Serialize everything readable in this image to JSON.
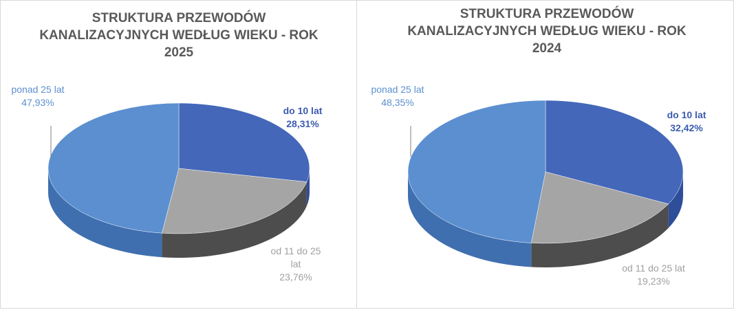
{
  "chart_data": [
    {
      "type": "pie",
      "title": "STRUKTURA PRZEWODÓW KANALIZACYJNYCH WEDŁUG WIEKU - ROK 2025",
      "categories": [
        "do 10 lat",
        "od 11 do 25 lat",
        "ponad 25 lat"
      ],
      "values": [
        28.31,
        23.76,
        47.93
      ],
      "value_labels": [
        "28,31%",
        "23,76%",
        "47,93%"
      ],
      "colors": [
        "#4467b9",
        "#a5a5a5",
        "#5b8fd0"
      ]
    },
    {
      "type": "pie",
      "title": "STRUKTURA PRZEWODÓW KANALIZACYJNYCH WEDŁUG WIEKU - ROK 2024",
      "categories": [
        "do 10 lat",
        "od 11 do 25 lat",
        "ponad 25 lat"
      ],
      "values": [
        32.42,
        19.23,
        48.35
      ],
      "value_labels": [
        "32,42%",
        "19,23%",
        "48,35%"
      ],
      "colors": [
        "#4467b9",
        "#a5a5a5",
        "#5b8fd0"
      ]
    }
  ]
}
